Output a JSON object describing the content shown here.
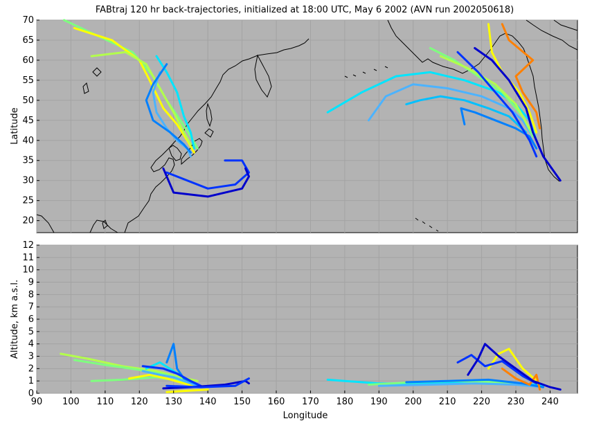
{
  "chart_data": [
    {
      "type": "line",
      "panel": "map",
      "title": "FABtraj 120 hr back-trajectories, initialized at 18:00 UTC, May 6 2002 (AVN run 2002050618)",
      "xlabel": "",
      "ylabel": "Latitude",
      "xlim": [
        90,
        248
      ],
      "ylim": [
        17,
        70
      ],
      "y_ticks": [
        "20",
        "25",
        "30",
        "35",
        "40",
        "45",
        "50",
        "55",
        "60",
        "65",
        "70"
      ],
      "grid": true,
      "background": "#b3b3b3",
      "coastline_color": "#000000",
      "series": [
        {
          "color": "#7fff7f",
          "x": [
            98,
            108,
            118,
            124,
            128,
            132,
            135,
            137
          ],
          "y": [
            70,
            66,
            62,
            56,
            50,
            45,
            41,
            38
          ]
        },
        {
          "color": "#ffff00",
          "x": [
            101,
            112,
            120,
            123,
            127,
            131,
            134,
            136
          ],
          "y": [
            68,
            65,
            60,
            55,
            48,
            44,
            40,
            37
          ]
        },
        {
          "color": "#b3ff4c",
          "x": [
            106,
            116,
            122,
            126,
            130,
            133,
            135
          ],
          "y": [
            61,
            62,
            59,
            53,
            47,
            42,
            39
          ]
        },
        {
          "color": "#00e5ff",
          "x": [
            125,
            128,
            131,
            133,
            135,
            136
          ],
          "y": [
            61,
            57,
            52,
            46,
            42,
            38
          ]
        },
        {
          "color": "#4cb3ff",
          "x": [
            126,
            124,
            125,
            128,
            131,
            134,
            135
          ],
          "y": [
            57,
            52,
            47,
            43,
            40,
            38,
            36
          ]
        },
        {
          "color": "#0080ff",
          "x": [
            128,
            124,
            122,
            124,
            129,
            133,
            135
          ],
          "y": [
            59,
            54,
            50,
            45,
            42,
            39,
            37
          ]
        },
        {
          "color": "#0033ff",
          "x": [
            128,
            140,
            148,
            152,
            150,
            145
          ],
          "y": [
            32,
            28,
            29,
            32,
            35,
            35
          ]
        },
        {
          "color": "#0000cc",
          "x": [
            127,
            130,
            140,
            150,
            152,
            151
          ],
          "y": [
            33,
            27,
            26,
            28,
            31,
            33
          ]
        },
        {
          "color": "#00e5ff",
          "x": [
            175,
            185,
            195,
            205,
            215,
            225,
            230,
            234,
            236
          ],
          "y": [
            47,
            52,
            56,
            57,
            55,
            52,
            49,
            45,
            40
          ]
        },
        {
          "color": "#4cb3ff",
          "x": [
            187,
            192,
            200,
            210,
            220,
            228,
            232,
            235
          ],
          "y": [
            45,
            51,
            54,
            53,
            51,
            48,
            45,
            41
          ]
        },
        {
          "color": "#00c0ff",
          "x": [
            198,
            202,
            208,
            215,
            222,
            228,
            233
          ],
          "y": [
            49,
            50,
            51,
            50,
            48,
            46,
            42
          ]
        },
        {
          "color": "#7fff7f",
          "x": [
            205,
            212,
            219,
            226,
            232,
            235
          ],
          "y": [
            63,
            60,
            56,
            52,
            46,
            41
          ]
        },
        {
          "color": "#b3ff4c",
          "x": [
            208,
            216,
            224,
            230,
            234
          ],
          "y": [
            61,
            58,
            54,
            49,
            43
          ]
        },
        {
          "color": "#ffff00",
          "x": [
            222,
            223,
            226,
            231,
            234,
            236
          ],
          "y": [
            69,
            62,
            57,
            52,
            47,
            42
          ]
        },
        {
          "color": "#ff8000",
          "x": [
            226,
            228,
            235,
            230,
            232,
            236,
            237
          ],
          "y": [
            69,
            65,
            60,
            56,
            52,
            47,
            43
          ]
        },
        {
          "color": "#0080ff",
          "x": [
            215,
            214,
            218,
            224,
            230,
            234,
            236
          ],
          "y": [
            44,
            48,
            47,
            45,
            43,
            41,
            38
          ]
        },
        {
          "color": "#0033ff",
          "x": [
            213,
            219,
            224,
            229,
            234,
            236
          ],
          "y": [
            62,
            57,
            52,
            47,
            40,
            36
          ]
        },
        {
          "color": "#0000cc",
          "x": [
            218,
            223,
            228,
            233,
            235,
            238,
            243
          ],
          "y": [
            63,
            60,
            55,
            48,
            42,
            36,
            30
          ]
        }
      ]
    },
    {
      "type": "line",
      "panel": "altitude",
      "title": "",
      "xlabel": "Longitude",
      "ylabel": "Altitude, km a.s.l.",
      "xlim": [
        90,
        248
      ],
      "ylim": [
        0,
        12
      ],
      "x_ticks": [
        "90",
        "100",
        "110",
        "120",
        "130",
        "140",
        "150",
        "160",
        "170",
        "180",
        "190",
        "200",
        "210",
        "220",
        "230",
        "240"
      ],
      "y_ticks": [
        "0",
        "1",
        "2",
        "3",
        "4",
        "5",
        "6",
        "7",
        "8",
        "9",
        "10",
        "11",
        "12"
      ],
      "grid": true,
      "background": "#b3b3b3",
      "series": [
        {
          "color": "#b3ff4c",
          "x": [
            97,
            105,
            115,
            125,
            132,
            137
          ],
          "y": [
            3.2,
            2.8,
            2.2,
            1.8,
            1.3,
            1.0
          ]
        },
        {
          "color": "#7fff7f",
          "x": [
            101,
            110,
            120,
            128,
            134,
            137
          ],
          "y": [
            2.7,
            2.3,
            1.9,
            1.5,
            1.0,
            0.7
          ]
        },
        {
          "color": "#7fff7f",
          "x": [
            106,
            115,
            125,
            132,
            137
          ],
          "y": [
            1.0,
            1.1,
            1.3,
            1.0,
            0.7
          ]
        },
        {
          "color": "#ffff00",
          "x": [
            117,
            123,
            128,
            133,
            137
          ],
          "y": [
            1.2,
            1.5,
            1.2,
            0.8,
            0.5
          ]
        },
        {
          "color": "#00e5ff",
          "x": [
            122,
            126,
            130,
            134,
            137
          ],
          "y": [
            2.0,
            2.5,
            1.8,
            1.1,
            0.7
          ]
        },
        {
          "color": "#4cb3ff",
          "x": [
            121,
            126,
            130,
            134,
            137
          ],
          "y": [
            1.8,
            1.5,
            1.3,
            0.9,
            0.6
          ]
        },
        {
          "color": "#0080ff",
          "x": [
            128,
            130,
            131,
            133,
            137
          ],
          "y": [
            2.5,
            4.0,
            2.0,
            1.2,
            0.7
          ]
        },
        {
          "color": "#0033ff",
          "x": [
            121,
            127,
            131,
            135,
            138
          ],
          "y": [
            2.2,
            2.0,
            1.6,
            1.0,
            0.6
          ]
        },
        {
          "color": "#0000cc",
          "x": [
            127,
            135,
            145,
            151,
            152
          ],
          "y": [
            0.4,
            0.5,
            0.7,
            1.0,
            0.8
          ]
        },
        {
          "color": "#0033ff",
          "x": [
            128,
            138,
            148,
            152
          ],
          "y": [
            0.6,
            0.5,
            0.6,
            1.2
          ]
        },
        {
          "color": "#ffff00",
          "x": [
            128,
            134,
            140
          ],
          "y": [
            0.1,
            0.2,
            0.3
          ]
        },
        {
          "color": "#00e5ff",
          "x": [
            175,
            190,
            205,
            220,
            232,
            238
          ],
          "y": [
            1.1,
            0.8,
            0.8,
            0.9,
            0.8,
            0.6
          ]
        },
        {
          "color": "#7fff7f",
          "x": [
            187,
            200,
            212,
            225,
            235
          ],
          "y": [
            0.7,
            0.9,
            1.0,
            0.9,
            0.6
          ]
        },
        {
          "color": "#4cb3ff",
          "x": [
            190,
            205,
            218,
            230,
            238
          ],
          "y": [
            0.6,
            0.7,
            0.8,
            0.7,
            0.5
          ]
        },
        {
          "color": "#0080ff",
          "x": [
            198,
            210,
            222,
            232,
            238
          ],
          "y": [
            0.9,
            1.0,
            1.1,
            0.8,
            0.5
          ]
        },
        {
          "color": "#ffff00",
          "x": [
            222,
            225,
            228,
            232,
            237
          ],
          "y": [
            2.0,
            3.2,
            3.6,
            2.0,
            0.8
          ]
        },
        {
          "color": "#ff8000",
          "x": [
            226,
            230,
            234,
            236,
            237
          ],
          "y": [
            2.0,
            1.2,
            0.7,
            1.5,
            0.3
          ]
        },
        {
          "color": "#0033ff",
          "x": [
            213,
            217,
            221,
            226,
            232,
            236
          ],
          "y": [
            2.5,
            3.1,
            2.2,
            2.6,
            1.4,
            0.8
          ]
        },
        {
          "color": "#0000cc",
          "x": [
            216,
            219,
            221,
            225,
            230,
            235,
            240,
            243
          ],
          "y": [
            1.5,
            2.8,
            4.0,
            3.0,
            2.0,
            1.0,
            0.5,
            0.3
          ]
        }
      ]
    }
  ]
}
